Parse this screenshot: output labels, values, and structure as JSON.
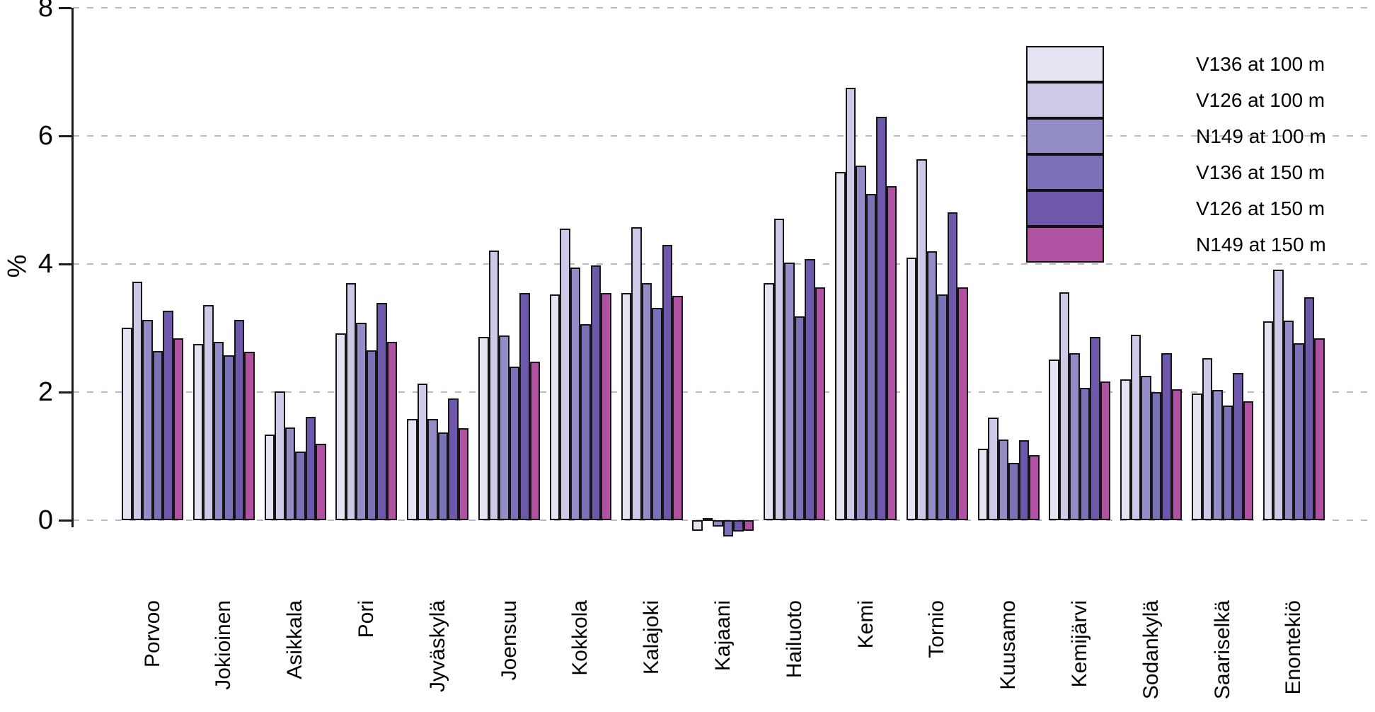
{
  "chart_data": {
    "type": "bar",
    "title": "",
    "xlabel": "",
    "ylabel": "%",
    "ylim": [
      -0.4,
      8
    ],
    "y_ticks": [
      0,
      2,
      4,
      6,
      8
    ],
    "grid": "dashed horizontal at every y tick",
    "legend_position": "top-right",
    "categories": [
      "Porvoo",
      "Jokioinen",
      "Asikkala",
      "Pori",
      "Jyväskylä",
      "Joensuu",
      "Kokkola",
      "Kalajoki",
      "Kajaani",
      "Hailuoto",
      "Kemi",
      "Tornio",
      "Kuusamo",
      "Kemijärvi",
      "Sodankylä",
      "Saariselkä",
      "Enontekiö"
    ],
    "series": [
      {
        "name": "V136 at 100 m",
        "color": "#e6e3f2",
        "values": [
          3.01,
          2.75,
          1.34,
          2.92,
          1.58,
          2.86,
          3.52,
          3.55,
          -0.17,
          3.7,
          5.44,
          4.1,
          1.12,
          2.51,
          2.2,
          1.98,
          3.1
        ]
      },
      {
        "name": "V126 at 100 m",
        "color": "#cdc9e6",
        "values": [
          3.72,
          3.36,
          2.01,
          3.7,
          2.13,
          4.21,
          4.55,
          4.58,
          0.03,
          4.71,
          6.75,
          5.63,
          1.6,
          3.56,
          2.9,
          2.53,
          3.91
        ]
      },
      {
        "name": "N149 at 100 m",
        "color": "#938dc7",
        "values": [
          3.13,
          2.79,
          1.45,
          3.08,
          1.58,
          2.88,
          3.95,
          3.7,
          -0.1,
          4.02,
          5.54,
          4.2,
          1.26,
          2.61,
          2.25,
          2.03,
          3.12
        ]
      },
      {
        "name": "V136 at 150 m",
        "color": "#7b71b7",
        "values": [
          2.64,
          2.58,
          1.07,
          2.65,
          1.37,
          2.4,
          3.06,
          3.31,
          -0.25,
          3.18,
          5.09,
          3.52,
          0.89,
          2.07,
          2.0,
          1.79,
          2.76
        ]
      },
      {
        "name": "V126 at 150 m",
        "color": "#6d58ab",
        "values": [
          3.27,
          3.13,
          1.61,
          3.39,
          1.9,
          3.55,
          3.98,
          4.3,
          -0.18,
          4.08,
          6.3,
          4.81,
          1.25,
          2.86,
          2.61,
          2.3,
          3.48
        ]
      },
      {
        "name": "N149 at 150 m",
        "color": "#b151a1",
        "values": [
          2.84,
          2.63,
          1.19,
          2.79,
          1.44,
          2.48,
          3.55,
          3.5,
          -0.17,
          3.64,
          5.22,
          3.63,
          1.02,
          2.17,
          2.04,
          1.86,
          2.84
        ]
      }
    ]
  },
  "axis": {
    "ylabel": "%",
    "tick_labels": [
      "8",
      "6",
      "4",
      "2",
      "0"
    ]
  },
  "colors": {
    "background": "#ffffff",
    "gridline": "#bcb8cb",
    "axis": "#1c1c1c",
    "bar_outline": "#161616"
  }
}
